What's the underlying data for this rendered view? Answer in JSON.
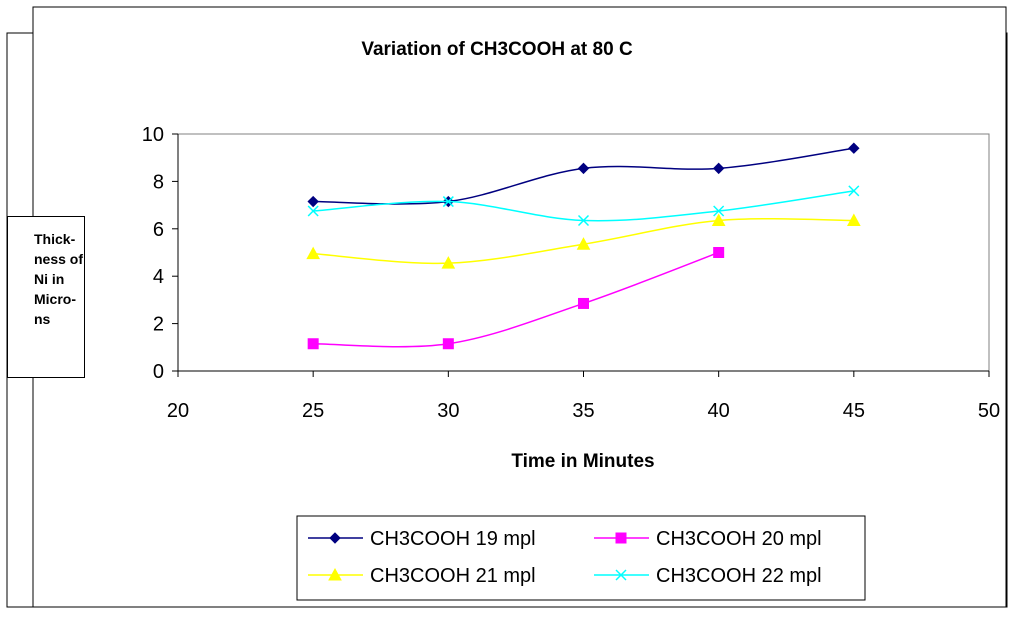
{
  "chart_data": {
    "type": "line",
    "title": "Variation of CH3COOH at 80 C",
    "xlabel": "Time in Minutes",
    "ylabel": "Thick-\nness of\nNi in\nMicro-\nns",
    "xlim": [
      20,
      50
    ],
    "ylim": [
      0,
      10
    ],
    "x_ticks": [
      20,
      25,
      30,
      35,
      40,
      45,
      50
    ],
    "y_ticks": [
      0,
      2,
      4,
      6,
      8,
      10
    ],
    "grid": false,
    "legend_position": "bottom",
    "smooth": true,
    "series": [
      {
        "name": "CH3COOH 19 mpl",
        "color": "#000080",
        "marker": "diamond",
        "points": [
          [
            25,
            7.15
          ],
          [
            30,
            7.15
          ],
          [
            35,
            8.55
          ],
          [
            40,
            8.55
          ],
          [
            45,
            9.4
          ]
        ]
      },
      {
        "name": "CH3COOH 20 mpl",
        "color": "#FF00FF",
        "marker": "square",
        "points": [
          [
            25,
            1.15
          ],
          [
            30,
            1.15
          ],
          [
            35,
            2.85
          ],
          [
            40,
            5.0
          ]
        ]
      },
      {
        "name": "CH3COOH 21 mpl",
        "color": "#FFFF00",
        "marker": "triangle",
        "points": [
          [
            25,
            4.95
          ],
          [
            30,
            4.55
          ],
          [
            35,
            5.35
          ],
          [
            40,
            6.35
          ],
          [
            45,
            6.35
          ]
        ]
      },
      {
        "name": "CH3COOH 22 mpl",
        "color": "#00FFFF",
        "marker": "x",
        "points": [
          [
            25,
            6.75
          ],
          [
            30,
            7.15
          ],
          [
            35,
            6.35
          ],
          [
            40,
            6.75
          ],
          [
            45,
            7.6
          ]
        ]
      }
    ]
  }
}
